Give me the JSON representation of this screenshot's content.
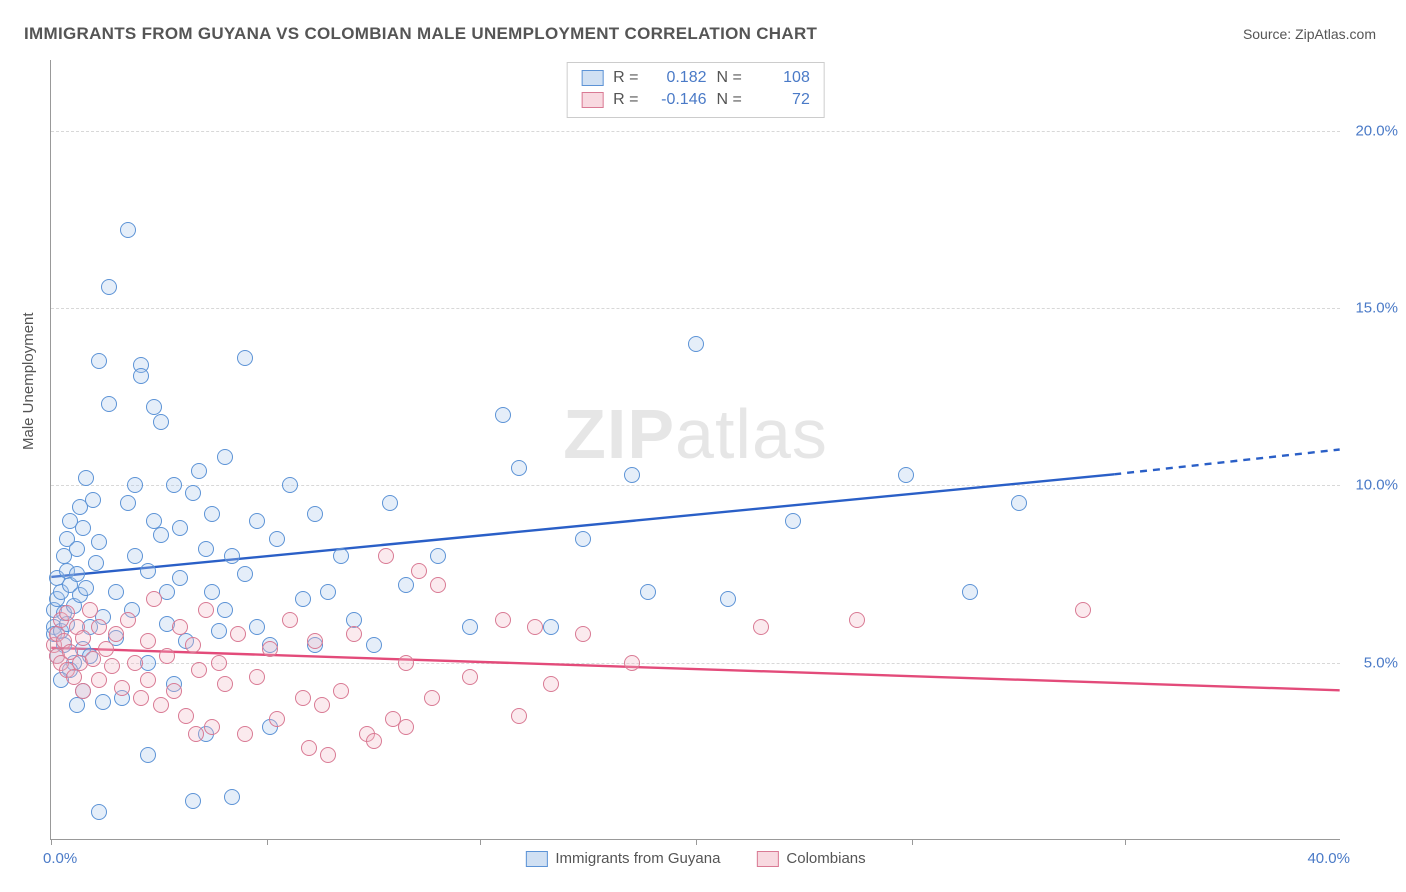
{
  "title": "IMMIGRANTS FROM GUYANA VS COLOMBIAN MALE UNEMPLOYMENT CORRELATION CHART",
  "source": "Source: ZipAtlas.com",
  "ylabel": "Male Unemployment",
  "watermark_bold": "ZIP",
  "watermark_rest": "atlas",
  "chart": {
    "type": "scatter",
    "background_color": "#ffffff",
    "grid_color": "#d8d8d8",
    "axis_color": "#999999",
    "tick_color": "#4a7ac7",
    "xlim": [
      0,
      40
    ],
    "ylim": [
      0,
      22
    ],
    "yticks": [
      5,
      10,
      15,
      20
    ],
    "ytick_labels": [
      "5.0%",
      "10.0%",
      "15.0%",
      "20.0%"
    ],
    "xtick_left": {
      "x": 0,
      "label": "0.0%"
    },
    "xtick_right": {
      "x": 40,
      "label": "40.0%"
    },
    "xtick_marks": [
      0,
      6.7,
      13.3,
      20,
      26.7,
      33.3
    ],
    "marker_radius": 8,
    "marker_stroke_width": 1.5,
    "marker_fill_opacity": 0.3,
    "trend_line_width": 2.4,
    "title_fontsize": 17,
    "label_fontsize": 15
  },
  "series": [
    {
      "name": "Immigrants from Guyana",
      "key": "guyana",
      "R": "0.182",
      "N": "108",
      "color_stroke": "#5c93d6",
      "color_fill": "#a9c6ea",
      "trend_color": "#2a5fc7",
      "trend": {
        "x1": 0,
        "y1": 7.4,
        "x2_solid": 33,
        "y2_solid": 10.3,
        "x2_dash": 40,
        "y2_dash": 11.0
      },
      "points": [
        [
          0.1,
          6.0
        ],
        [
          0.1,
          6.5
        ],
        [
          0.1,
          5.8
        ],
        [
          0.2,
          7.4
        ],
        [
          0.2,
          5.2
        ],
        [
          0.2,
          6.8
        ],
        [
          0.3,
          7.0
        ],
        [
          0.3,
          5.9
        ],
        [
          0.4,
          8.0
        ],
        [
          0.4,
          6.4
        ],
        [
          0.4,
          5.5
        ],
        [
          0.5,
          7.6
        ],
        [
          0.5,
          8.5
        ],
        [
          0.5,
          6.1
        ],
        [
          0.6,
          9.0
        ],
        [
          0.6,
          7.2
        ],
        [
          0.7,
          5.0
        ],
        [
          0.7,
          6.6
        ],
        [
          0.8,
          8.2
        ],
        [
          0.8,
          7.5
        ],
        [
          0.9,
          6.9
        ],
        [
          0.9,
          9.4
        ],
        [
          1.0,
          8.8
        ],
        [
          1.0,
          5.4
        ],
        [
          1.1,
          10.2
        ],
        [
          1.1,
          7.1
        ],
        [
          1.2,
          6.0
        ],
        [
          1.2,
          5.2
        ],
        [
          1.3,
          9.6
        ],
        [
          1.4,
          7.8
        ],
        [
          1.5,
          8.4
        ],
        [
          1.5,
          13.5
        ],
        [
          1.5,
          0.8
        ],
        [
          1.6,
          3.9
        ],
        [
          1.6,
          6.3
        ],
        [
          1.8,
          15.6
        ],
        [
          1.8,
          12.3
        ],
        [
          2.0,
          7.0
        ],
        [
          2.0,
          5.7
        ],
        [
          2.2,
          4.0
        ],
        [
          2.4,
          9.5
        ],
        [
          2.4,
          17.2
        ],
        [
          2.6,
          8.0
        ],
        [
          2.6,
          10.0
        ],
        [
          2.8,
          13.4
        ],
        [
          2.8,
          13.1
        ],
        [
          3.0,
          7.6
        ],
        [
          3.0,
          5.0
        ],
        [
          3.0,
          2.4
        ],
        [
          3.2,
          9.0
        ],
        [
          3.2,
          12.2
        ],
        [
          3.4,
          8.6
        ],
        [
          3.4,
          11.8
        ],
        [
          3.6,
          7.0
        ],
        [
          3.6,
          6.1
        ],
        [
          3.8,
          10.0
        ],
        [
          3.8,
          4.4
        ],
        [
          4.0,
          8.8
        ],
        [
          4.0,
          7.4
        ],
        [
          4.2,
          5.6
        ],
        [
          4.4,
          9.8
        ],
        [
          4.4,
          1.1
        ],
        [
          4.6,
          10.4
        ],
        [
          4.8,
          8.2
        ],
        [
          4.8,
          3.0
        ],
        [
          5.0,
          7.0
        ],
        [
          5.0,
          9.2
        ],
        [
          5.2,
          5.9
        ],
        [
          5.4,
          10.8
        ],
        [
          5.4,
          6.5
        ],
        [
          5.6,
          8.0
        ],
        [
          5.6,
          1.2
        ],
        [
          6.0,
          13.6
        ],
        [
          6.0,
          7.5
        ],
        [
          6.4,
          9.0
        ],
        [
          6.4,
          6.0
        ],
        [
          6.8,
          5.5
        ],
        [
          6.8,
          3.2
        ],
        [
          7.0,
          8.5
        ],
        [
          7.4,
          10.0
        ],
        [
          7.8,
          6.8
        ],
        [
          8.2,
          9.2
        ],
        [
          8.2,
          5.5
        ],
        [
          8.6,
          7.0
        ],
        [
          9.0,
          8.0
        ],
        [
          9.4,
          6.2
        ],
        [
          10.0,
          5.5
        ],
        [
          10.5,
          9.5
        ],
        [
          11.0,
          7.2
        ],
        [
          12.0,
          8.0
        ],
        [
          13.0,
          6.0
        ],
        [
          14.0,
          12.0
        ],
        [
          14.5,
          10.5
        ],
        [
          15.5,
          6.0
        ],
        [
          16.5,
          8.5
        ],
        [
          18.0,
          10.3
        ],
        [
          18.5,
          7.0
        ],
        [
          20.0,
          14.0
        ],
        [
          21.0,
          6.8
        ],
        [
          23.0,
          9.0
        ],
        [
          26.5,
          10.3
        ],
        [
          28.5,
          7.0
        ],
        [
          30.0,
          9.5
        ],
        [
          1.0,
          4.2
        ],
        [
          0.6,
          4.8
        ],
        [
          0.3,
          4.5
        ],
        [
          0.8,
          3.8
        ],
        [
          2.5,
          6.5
        ]
      ]
    },
    {
      "name": "Colombians",
      "key": "colombians",
      "R": "-0.146",
      "N": "72",
      "color_stroke": "#d97a94",
      "color_fill": "#f2b9c7",
      "trend_color": "#e34b7a",
      "trend": {
        "x1": 0,
        "y1": 5.4,
        "x2_solid": 40,
        "y2_solid": 4.2,
        "x2_dash": 40,
        "y2_dash": 4.2
      },
      "points": [
        [
          0.1,
          5.5
        ],
        [
          0.2,
          5.8
        ],
        [
          0.2,
          5.2
        ],
        [
          0.3,
          6.2
        ],
        [
          0.3,
          5.0
        ],
        [
          0.4,
          5.6
        ],
        [
          0.5,
          4.8
        ],
        [
          0.5,
          6.4
        ],
        [
          0.6,
          5.3
        ],
        [
          0.7,
          4.6
        ],
        [
          0.8,
          6.0
        ],
        [
          0.9,
          5.0
        ],
        [
          1.0,
          5.7
        ],
        [
          1.0,
          4.2
        ],
        [
          1.2,
          6.5
        ],
        [
          1.3,
          5.1
        ],
        [
          1.5,
          4.5
        ],
        [
          1.5,
          6.0
        ],
        [
          1.7,
          5.4
        ],
        [
          1.9,
          4.9
        ],
        [
          2.0,
          5.8
        ],
        [
          2.2,
          4.3
        ],
        [
          2.4,
          6.2
        ],
        [
          2.6,
          5.0
        ],
        [
          2.8,
          4.0
        ],
        [
          3.0,
          5.6
        ],
        [
          3.0,
          4.5
        ],
        [
          3.2,
          6.8
        ],
        [
          3.4,
          3.8
        ],
        [
          3.6,
          5.2
        ],
        [
          3.8,
          4.2
        ],
        [
          4.0,
          6.0
        ],
        [
          4.2,
          3.5
        ],
        [
          4.4,
          5.5
        ],
        [
          4.6,
          4.8
        ],
        [
          4.8,
          6.5
        ],
        [
          5.0,
          3.2
        ],
        [
          5.2,
          5.0
        ],
        [
          5.4,
          4.4
        ],
        [
          5.8,
          5.8
        ],
        [
          6.0,
          3.0
        ],
        [
          6.4,
          4.6
        ],
        [
          6.8,
          5.4
        ],
        [
          7.0,
          3.4
        ],
        [
          7.4,
          6.2
        ],
        [
          7.8,
          4.0
        ],
        [
          8.0,
          2.6
        ],
        [
          8.2,
          5.6
        ],
        [
          8.4,
          3.8
        ],
        [
          8.6,
          2.4
        ],
        [
          9.0,
          4.2
        ],
        [
          9.4,
          5.8
        ],
        [
          9.8,
          3.0
        ],
        [
          10.0,
          2.8
        ],
        [
          10.4,
          8.0
        ],
        [
          10.6,
          3.4
        ],
        [
          11.0,
          5.0
        ],
        [
          11.0,
          3.2
        ],
        [
          11.4,
          7.6
        ],
        [
          11.8,
          4.0
        ],
        [
          12.0,
          7.2
        ],
        [
          13.0,
          4.6
        ],
        [
          14.0,
          6.2
        ],
        [
          14.5,
          3.5
        ],
        [
          15.0,
          6.0
        ],
        [
          15.5,
          4.4
        ],
        [
          16.5,
          5.8
        ],
        [
          18.0,
          5.0
        ],
        [
          22.0,
          6.0
        ],
        [
          25.0,
          6.2
        ],
        [
          32.0,
          6.5
        ],
        [
          4.5,
          3.0
        ]
      ]
    }
  ],
  "legend_bottom": {
    "label1": "Immigrants from Guyana",
    "label2": "Colombians"
  },
  "legend_top": {
    "r_label": "R =",
    "n_label": "N ="
  }
}
